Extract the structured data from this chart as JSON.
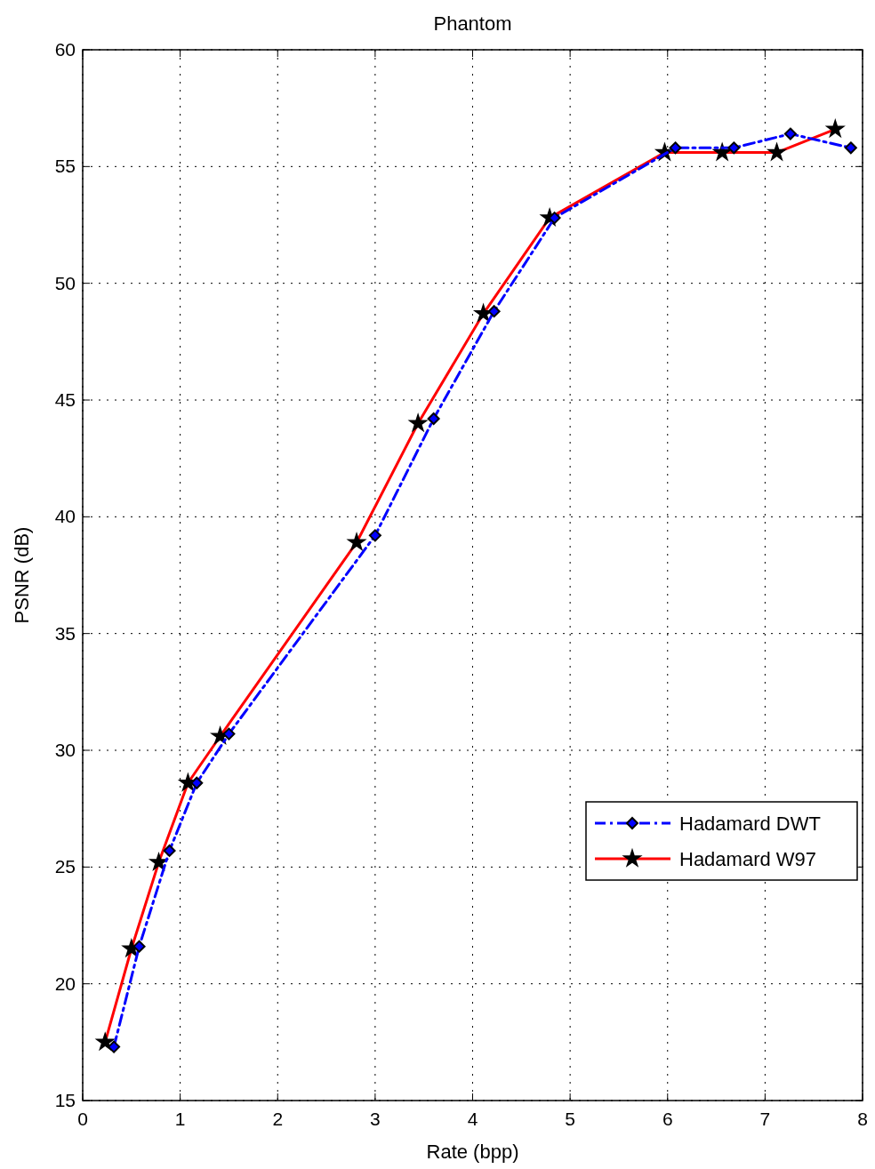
{
  "chart_data": {
    "type": "line",
    "title": "Phantom",
    "xlabel": "Rate (bpp)",
    "ylabel": "PSNR (dB)",
    "xlim": [
      0,
      8
    ],
    "xticks": [
      0,
      1,
      2,
      3,
      4,
      5,
      6,
      7,
      8
    ],
    "ylim": [
      15,
      60
    ],
    "yticks": [
      15,
      20,
      25,
      30,
      35,
      40,
      45,
      50,
      55,
      60
    ],
    "grid": true,
    "legend": "bottom right",
    "series": [
      {
        "name": "Hadamard DWT",
        "color": "#0000ff",
        "marker": "diamond",
        "line_style": "dashdot",
        "x": [
          0.32,
          0.58,
          0.89,
          1.17,
          1.5,
          3.0,
          3.6,
          4.22,
          4.84,
          6.08,
          6.68,
          7.26,
          7.88
        ],
        "values": [
          17.3,
          21.6,
          25.7,
          28.6,
          30.7,
          39.2,
          44.2,
          48.8,
          52.8,
          55.8,
          55.8,
          56.4,
          55.8
        ]
      },
      {
        "name": "Hadamard W97",
        "color": "#ff0000",
        "marker": "star",
        "line_style": "solid",
        "x": [
          0.23,
          0.5,
          0.78,
          1.08,
          1.41,
          2.81,
          3.44,
          4.11,
          4.79,
          5.97,
          6.56,
          7.12,
          7.72
        ],
        "values": [
          17.5,
          21.5,
          25.2,
          28.6,
          30.6,
          38.9,
          44.0,
          48.7,
          52.8,
          55.6,
          55.6,
          55.6,
          56.6
        ]
      }
    ]
  }
}
